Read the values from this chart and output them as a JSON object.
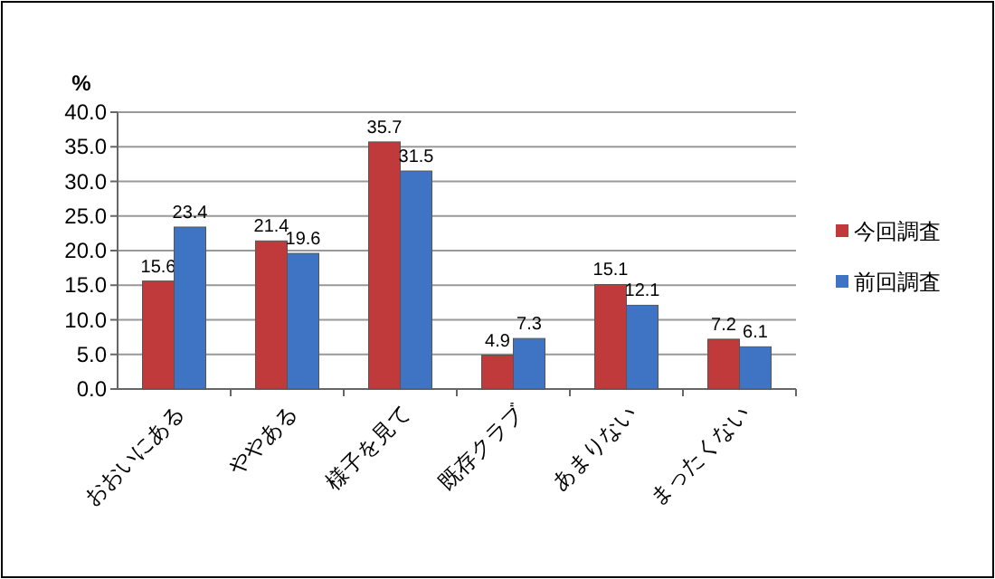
{
  "chart_data": {
    "type": "bar",
    "ylabel": "%",
    "categories": [
      "おおいにある",
      "ややある",
      "様子を見て",
      "既存クラブ",
      "あまりない",
      "まったくない"
    ],
    "series": [
      {
        "name": "今回調査",
        "color": "#c0393b",
        "values": [
          15.6,
          21.4,
          35.7,
          4.9,
          15.1,
          7.2
        ]
      },
      {
        "name": "前回調査",
        "color": "#3f74c4",
        "values": [
          23.4,
          19.6,
          31.5,
          7.3,
          12.1,
          6.1
        ]
      }
    ],
    "ylim": [
      0,
      40
    ],
    "yticks": [
      {
        "value": 0,
        "label": "0.0"
      },
      {
        "value": 5,
        "label": "5.0"
      },
      {
        "value": 10,
        "label": "10.0"
      },
      {
        "value": 15,
        "label": "15.0"
      },
      {
        "value": 20,
        "label": "20.0"
      },
      {
        "value": 25,
        "label": "25.0"
      },
      {
        "value": 30,
        "label": "30.0"
      },
      {
        "value": 35,
        "label": "35.0"
      },
      {
        "value": 40,
        "label": "40.0"
      }
    ],
    "grid": "y",
    "legend": "right",
    "data_labels": true
  }
}
